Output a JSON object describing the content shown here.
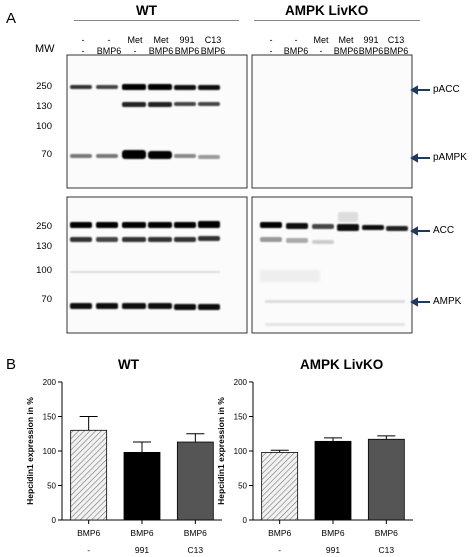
{
  "panel_a": {
    "letter": "A",
    "groups": [
      {
        "title": "WT"
      },
      {
        "title": "AMPK LivKO"
      }
    ],
    "lane_row1": [
      "-",
      "-",
      "Met",
      "Met",
      "991",
      "C13"
    ],
    "lane_row2": [
      "-",
      "BMP6",
      "-",
      "BMP6",
      "BMP6",
      "BMP6"
    ],
    "mw_title": "MW",
    "mw_top": [
      "250",
      "130",
      "100",
      "70"
    ],
    "mw_bottom": [
      "250",
      "130",
      "100",
      "70"
    ],
    "proteins_top": [
      "pACC",
      "pAMPK"
    ],
    "proteins_bottom": [
      "ACC",
      "AMPK"
    ]
  },
  "panel_b": {
    "letter": "B",
    "chart_data": [
      {
        "type": "bar",
        "title": "WT",
        "ylabel": "Hepcidin1 expression in %",
        "categories": [
          "BMP6",
          "BMP6",
          "BMP6"
        ],
        "subcategories": [
          "-",
          "991",
          "C13"
        ],
        "values": [
          130,
          98,
          113
        ],
        "errors": [
          20,
          15,
          12
        ],
        "ylim": [
          0,
          200
        ],
        "yticks": [
          "0",
          "50",
          "100",
          "150",
          "200"
        ],
        "fills": [
          "#e6e6e6",
          "#000000",
          "#555555"
        ]
      },
      {
        "type": "bar",
        "title": "AMPK LivKO",
        "ylabel": "Hepcidin1 expression in %",
        "categories": [
          "BMP6",
          "BMP6",
          "BMP6"
        ],
        "subcategories": [
          "-",
          "991",
          "C13"
        ],
        "values": [
          98,
          114,
          117
        ],
        "errors": [
          3,
          5,
          5
        ],
        "ylim": [
          0,
          200
        ],
        "yticks": [
          "0",
          "50",
          "100",
          "150",
          "200"
        ],
        "fills": [
          "#e6e6e6",
          "#000000",
          "#555555"
        ]
      }
    ]
  }
}
